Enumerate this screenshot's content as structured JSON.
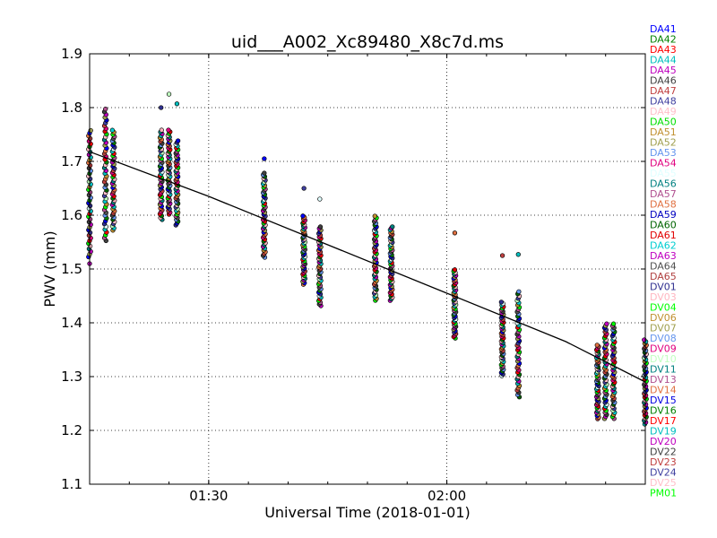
{
  "chart_data": {
    "type": "scatter",
    "title": "uid___A002_Xc89480_X8c7d.ms",
    "xlabel": "Universal Time (2018-01-01)",
    "ylabel": "PWV (mm)",
    "xlim": [
      "01:15",
      "02:25"
    ],
    "ylim": [
      1.1,
      1.9
    ],
    "x_ticks": [
      {
        "t": "01:30",
        "label": "01:30"
      },
      {
        "t": "02:00",
        "label": "02:00"
      }
    ],
    "y_ticks": [
      1.1,
      1.2,
      1.3,
      1.4,
      1.5,
      1.6,
      1.7,
      1.8,
      1.9
    ],
    "grid": true,
    "legend_placement": "right, outside plot",
    "antennas": [
      {
        "name": "DA41",
        "color": "#0000ff"
      },
      {
        "name": "DA42",
        "color": "#008000"
      },
      {
        "name": "DA43",
        "color": "#ff0000"
      },
      {
        "name": "DA44",
        "color": "#00bfbf"
      },
      {
        "name": "DA45",
        "color": "#bf00bf"
      },
      {
        "name": "DA46",
        "color": "#404040"
      },
      {
        "name": "DA47",
        "color": "#c04040"
      },
      {
        "name": "DA48",
        "color": "#4040a0"
      },
      {
        "name": "DA49",
        "color": "#ffc0cb"
      },
      {
        "name": "DA50",
        "color": "#00e000"
      },
      {
        "name": "DA51",
        "color": "#c09030"
      },
      {
        "name": "DA52",
        "color": "#a0a050"
      },
      {
        "name": "DA53",
        "color": "#6495ed"
      },
      {
        "name": "DA54",
        "color": "#e0007f"
      },
      {
        "name": "DA55",
        "color": "#e0ffff"
      },
      {
        "name": "DA56",
        "color": "#008080"
      },
      {
        "name": "DA57",
        "color": "#b05090"
      },
      {
        "name": "DA58",
        "color": "#e07040"
      },
      {
        "name": "DA59",
        "color": "#0000c0"
      },
      {
        "name": "DA60",
        "color": "#006400"
      },
      {
        "name": "DA61",
        "color": "#e00000"
      },
      {
        "name": "DA62",
        "color": "#00ced1"
      },
      {
        "name": "DA63",
        "color": "#c000c0"
      },
      {
        "name": "DA64",
        "color": "#505050"
      },
      {
        "name": "DA65",
        "color": "#b04040"
      },
      {
        "name": "DV01",
        "color": "#303090"
      },
      {
        "name": "DV03",
        "color": "#ffb6c1"
      },
      {
        "name": "DV04",
        "color": "#00ff00"
      },
      {
        "name": "DV06",
        "color": "#c09030"
      },
      {
        "name": "DV07",
        "color": "#a0a050"
      },
      {
        "name": "DV08",
        "color": "#6495ed"
      },
      {
        "name": "DV09",
        "color": "#e0007f"
      },
      {
        "name": "DV10",
        "color": "#c0ffc0"
      },
      {
        "name": "DV11",
        "color": "#008080"
      },
      {
        "name": "DV13",
        "color": "#b05090"
      },
      {
        "name": "DV14",
        "color": "#e07040"
      },
      {
        "name": "DV15",
        "color": "#0000e0"
      },
      {
        "name": "DV16",
        "color": "#008000"
      },
      {
        "name": "DV17",
        "color": "#ff0000"
      },
      {
        "name": "DV19",
        "color": "#00bfbf"
      },
      {
        "name": "DV20",
        "color": "#bf00bf"
      },
      {
        "name": "DV22",
        "color": "#404040"
      },
      {
        "name": "DV23",
        "color": "#c04040"
      },
      {
        "name": "DV24",
        "color": "#4040a0"
      },
      {
        "name": "DV25",
        "color": "#ffc0cb"
      },
      {
        "name": "PM01",
        "color": "#00ff00"
      }
    ],
    "fit_line": {
      "t": [
        "01:15",
        "01:30",
        "01:45",
        "02:00",
        "02:15",
        "02:25"
      ],
      "pwv": [
        1.718,
        1.635,
        1.545,
        1.455,
        1.365,
        1.29
      ]
    },
    "scans": [
      {
        "t": "01:15",
        "min": 1.52,
        "max": 1.76,
        "outliers": [
          1.51
        ]
      },
      {
        "t": "01:17",
        "min": 1.55,
        "max": 1.8,
        "outliers": []
      },
      {
        "t": "01:18",
        "min": 1.57,
        "max": 1.76,
        "outliers": []
      },
      {
        "t": "01:24",
        "min": 1.59,
        "max": 1.76,
        "outliers": [
          1.8
        ]
      },
      {
        "t": "01:25",
        "min": 1.6,
        "max": 1.76,
        "outliers": [
          1.825
        ]
      },
      {
        "t": "01:26",
        "min": 1.58,
        "max": 1.74,
        "outliers": [
          1.807
        ]
      },
      {
        "t": "01:37",
        "min": 1.52,
        "max": 1.68,
        "outliers": [
          1.705
        ]
      },
      {
        "t": "01:42",
        "min": 1.47,
        "max": 1.6,
        "outliers": [
          1.65
        ]
      },
      {
        "t": "01:44",
        "min": 1.43,
        "max": 1.58,
        "outliers": [
          1.63
        ]
      },
      {
        "t": "01:51",
        "min": 1.44,
        "max": 1.6,
        "outliers": []
      },
      {
        "t": "01:53",
        "min": 1.44,
        "max": 1.58,
        "outliers": []
      },
      {
        "t": "02:01",
        "min": 1.37,
        "max": 1.5,
        "outliers": [
          1.567
        ]
      },
      {
        "t": "02:07",
        "min": 1.3,
        "max": 1.44,
        "outliers": [
          1.525
        ]
      },
      {
        "t": "02:09",
        "min": 1.26,
        "max": 1.46,
        "outliers": [
          1.527
        ]
      },
      {
        "t": "02:19",
        "min": 1.22,
        "max": 1.36,
        "outliers": []
      },
      {
        "t": "02:20",
        "min": 1.22,
        "max": 1.4,
        "outliers": []
      },
      {
        "t": "02:21",
        "min": 1.22,
        "max": 1.4,
        "outliers": []
      },
      {
        "t": "02:25",
        "min": 1.21,
        "max": 1.37,
        "outliers": []
      }
    ]
  }
}
